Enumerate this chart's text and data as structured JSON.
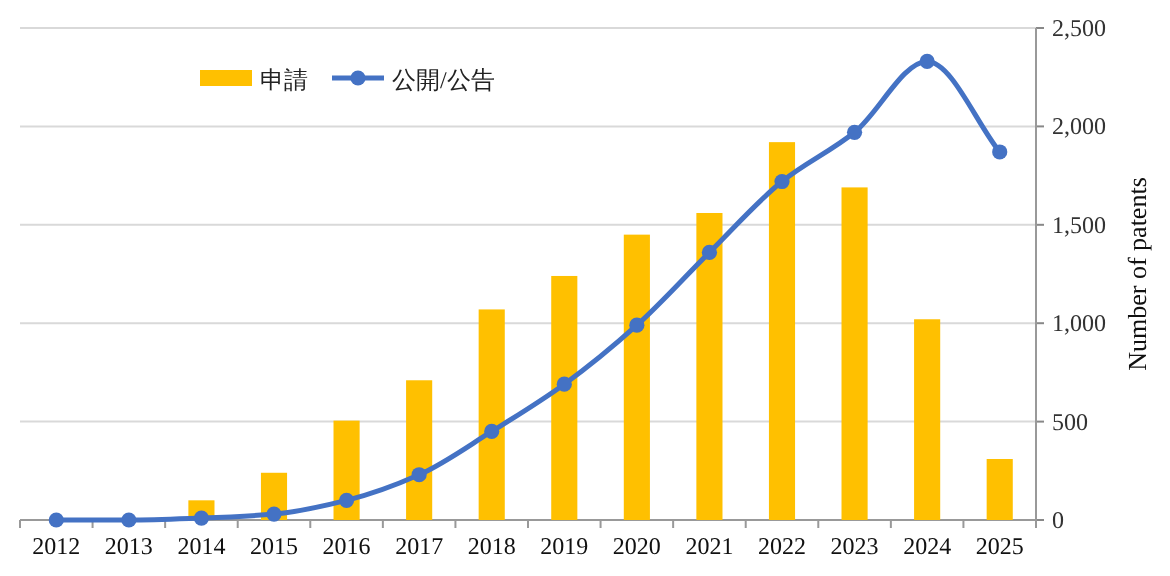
{
  "chart_data": {
    "type": "bar",
    "categories": [
      "2012",
      "2013",
      "2014",
      "2015",
      "2016",
      "2017",
      "2018",
      "2019",
      "2020",
      "2021",
      "2022",
      "2023",
      "2024",
      "2025"
    ],
    "series": [
      {
        "name": "申請",
        "color": "#ffc000",
        "values": [
          0,
          0,
          100,
          240,
          505,
          710,
          1070,
          1240,
          1450,
          1560,
          1920,
          1690,
          1020,
          310
        ]
      },
      {
        "name": "公開/公告",
        "type": "line",
        "color": "#4472c4",
        "values": [
          0,
          0,
          10,
          30,
          100,
          230,
          450,
          690,
          990,
          1360,
          1720,
          1970,
          2330,
          1870
        ]
      }
    ],
    "ylabel": "Number of patents",
    "ylim": [
      0,
      2500
    ],
    "yticks": [
      0,
      {
        "value": 500,
        "label": "500"
      },
      {
        "value": 1000,
        "label": "1,000"
      },
      {
        "value": 1500,
        "label": "1,500"
      },
      {
        "value": 2000,
        "label": "2,000"
      },
      {
        "value": 2500,
        "label": "2,500"
      }
    ],
    "grid": "y",
    "legend": "top",
    "marker": "circle",
    "line_style": "solid"
  }
}
